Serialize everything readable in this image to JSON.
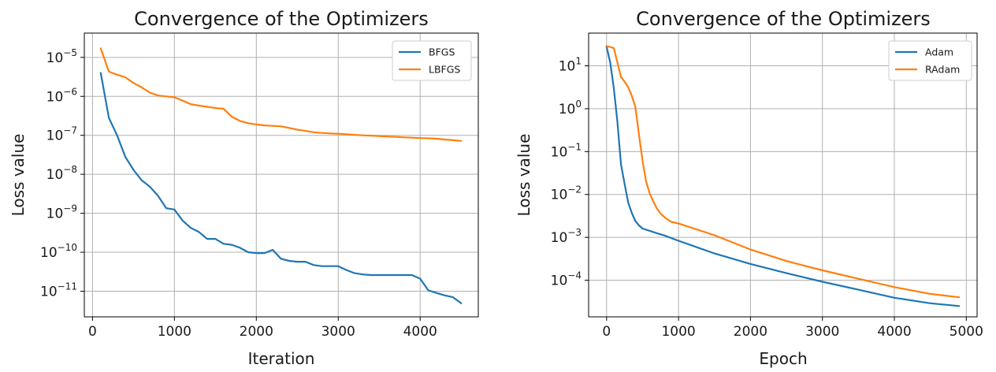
{
  "chart_data": [
    {
      "type": "line",
      "title": "Convergence of the Optimizers",
      "xlabel": "Iteration",
      "ylabel": "Loss value",
      "yscale": "log",
      "xlim": [
        -100,
        4710
      ],
      "ylim": [
        2.2e-12,
        4.2e-05
      ],
      "xticks": [
        {
          "value": 0,
          "label": "0"
        },
        {
          "value": 1000,
          "label": "1000"
        },
        {
          "value": 2000,
          "label": "2000"
        },
        {
          "value": 3000,
          "label": "3000"
        },
        {
          "value": 4000,
          "label": "4000"
        }
      ],
      "yticks": [
        {
          "value": 1e-11,
          "base": "10",
          "exp": "−11"
        },
        {
          "value": 1e-10,
          "base": "10",
          "exp": "−10"
        },
        {
          "value": 1e-09,
          "base": "10",
          "exp": "−9"
        },
        {
          "value": 1e-08,
          "base": "10",
          "exp": "−8"
        },
        {
          "value": 1e-07,
          "base": "10",
          "exp": "−7"
        },
        {
          "value": 1e-06,
          "base": "10",
          "exp": "−6"
        },
        {
          "value": 1e-05,
          "base": "10",
          "exp": "−5"
        }
      ],
      "grid": true,
      "legend": "upper-right",
      "series": [
        {
          "name": "BFGS",
          "color": "#1f77b4",
          "x": [
            100,
            200,
            300,
            400,
            500,
            600,
            700,
            800,
            900,
            1000,
            1100,
            1200,
            1300,
            1400,
            1500,
            1600,
            1700,
            1800,
            1900,
            2000,
            2100,
            2200,
            2300,
            2400,
            2500,
            2600,
            2700,
            2800,
            2900,
            3000,
            3100,
            3200,
            3300,
            3400,
            3500,
            3600,
            3700,
            3800,
            3900,
            4000,
            4100,
            4200,
            4300,
            4400,
            4500
          ],
          "y": [
            4e-06,
            2.8e-07,
            1e-07,
            2.8e-08,
            1.3e-08,
            7e-09,
            4.8e-09,
            2.8e-09,
            1.35e-09,
            1.25e-09,
            6.5e-10,
            4.2e-10,
            3.3e-10,
            2.2e-10,
            2.2e-10,
            1.65e-10,
            1.55e-10,
            1.3e-10,
            1e-10,
            9.5e-11,
            9.5e-11,
            1.15e-10,
            6.8e-11,
            6e-11,
            5.7e-11,
            5.7e-11,
            4.7e-11,
            4.4e-11,
            4.4e-11,
            4.4e-11,
            3.5e-11,
            2.9e-11,
            2.7e-11,
            2.6e-11,
            2.6e-11,
            2.6e-11,
            2.6e-11,
            2.6e-11,
            2.6e-11,
            2.1e-11,
            1.05e-11,
            9e-12,
            7.8e-12,
            7e-12,
            4.9e-12
          ]
        },
        {
          "name": "LBFGS",
          "color": "#ff7f0e",
          "x": [
            100,
            200,
            300,
            400,
            500,
            600,
            700,
            800,
            900,
            1000,
            1100,
            1200,
            1300,
            1400,
            1500,
            1600,
            1700,
            1800,
            1900,
            2000,
            2100,
            2200,
            2300,
            2400,
            2500,
            2600,
            2700,
            2800,
            2900,
            3000,
            3100,
            3200,
            3300,
            3400,
            3500,
            3600,
            3700,
            3800,
            3900,
            4000,
            4100,
            4200,
            4300,
            4400,
            4500
          ],
          "y": [
            1.7e-05,
            4.3e-06,
            3.6e-06,
            3.1e-06,
            2.2e-06,
            1.7e-06,
            1.25e-06,
            1.05e-06,
            1e-06,
            9.5e-07,
            7.8e-07,
            6.3e-07,
            5.8e-07,
            5.4e-07,
            5e-07,
            4.8e-07,
            3e-07,
            2.35e-07,
            2.05e-07,
            1.9e-07,
            1.8e-07,
            1.75e-07,
            1.7e-07,
            1.55e-07,
            1.4e-07,
            1.3e-07,
            1.2e-07,
            1.15e-07,
            1.12e-07,
            1.1e-07,
            1.07e-07,
            1.03e-07,
            1e-07,
            9.8e-08,
            9.6e-08,
            9.3e-08,
            9.1e-08,
            8.9e-08,
            8.7e-08,
            8.5e-08,
            8.4e-08,
            8.2e-08,
            7.8e-08,
            7.5e-08,
            7.2e-08
          ]
        }
      ]
    },
    {
      "type": "line",
      "title": "Convergence of the Optimizers",
      "xlabel": "Epoch",
      "ylabel": "Loss value",
      "yscale": "log",
      "xlim": [
        -250,
        5150
      ],
      "ylim": [
        1.4e-05,
        58
      ],
      "xticks": [
        {
          "value": 0,
          "label": "0"
        },
        {
          "value": 1000,
          "label": "1000"
        },
        {
          "value": 2000,
          "label": "2000"
        },
        {
          "value": 3000,
          "label": "3000"
        },
        {
          "value": 4000,
          "label": "4000"
        },
        {
          "value": 5000,
          "label": "5000"
        }
      ],
      "yticks": [
        {
          "value": 0.0001,
          "base": "10",
          "exp": "−4"
        },
        {
          "value": 0.001,
          "base": "10",
          "exp": "−3"
        },
        {
          "value": 0.01,
          "base": "10",
          "exp": "−2"
        },
        {
          "value": 0.1,
          "base": "10",
          "exp": "−1"
        },
        {
          "value": 1,
          "base": "10",
          "exp": "0"
        },
        {
          "value": 10,
          "base": "10",
          "exp": "1"
        }
      ],
      "grid": true,
      "legend": "upper-right",
      "series": [
        {
          "name": "Adam",
          "color": "#1f77b4",
          "x": [
            0,
            50,
            100,
            150,
            200,
            250,
            300,
            350,
            400,
            450,
            500,
            600,
            700,
            800,
            1000,
            1500,
            2000,
            2500,
            3000,
            3500,
            4000,
            4500,
            4900
          ],
          "y": [
            28,
            12,
            3,
            0.5,
            0.05,
            0.018,
            0.0065,
            0.0037,
            0.0024,
            0.0019,
            0.0016,
            0.00142,
            0.00125,
            0.00111,
            0.00083,
            0.00042,
            0.00024,
            0.000146,
            9.2e-05,
            6e-05,
            3.9e-05,
            2.9e-05,
            2.5e-05
          ]
        },
        {
          "name": "RAdam",
          "color": "#ff7f0e",
          "x": [
            0,
            100,
            150,
            200,
            250,
            300,
            350,
            400,
            450,
            500,
            550,
            600,
            650,
            700,
            750,
            800,
            850,
            900,
            1000,
            1500,
            2000,
            2500,
            3000,
            3500,
            4000,
            4500,
            4900
          ],
          "y": [
            29,
            26,
            12,
            5.5,
            4.3,
            3.2,
            2,
            1.1,
            0.25,
            0.06,
            0.02,
            0.0105,
            0.0068,
            0.0047,
            0.0036,
            0.003,
            0.0026,
            0.0023,
            0.0021,
            0.00112,
            0.00052,
            0.00028,
            0.00017,
            0.000108,
            6.9e-05,
            4.8e-05,
            4e-05
          ]
        }
      ]
    }
  ]
}
